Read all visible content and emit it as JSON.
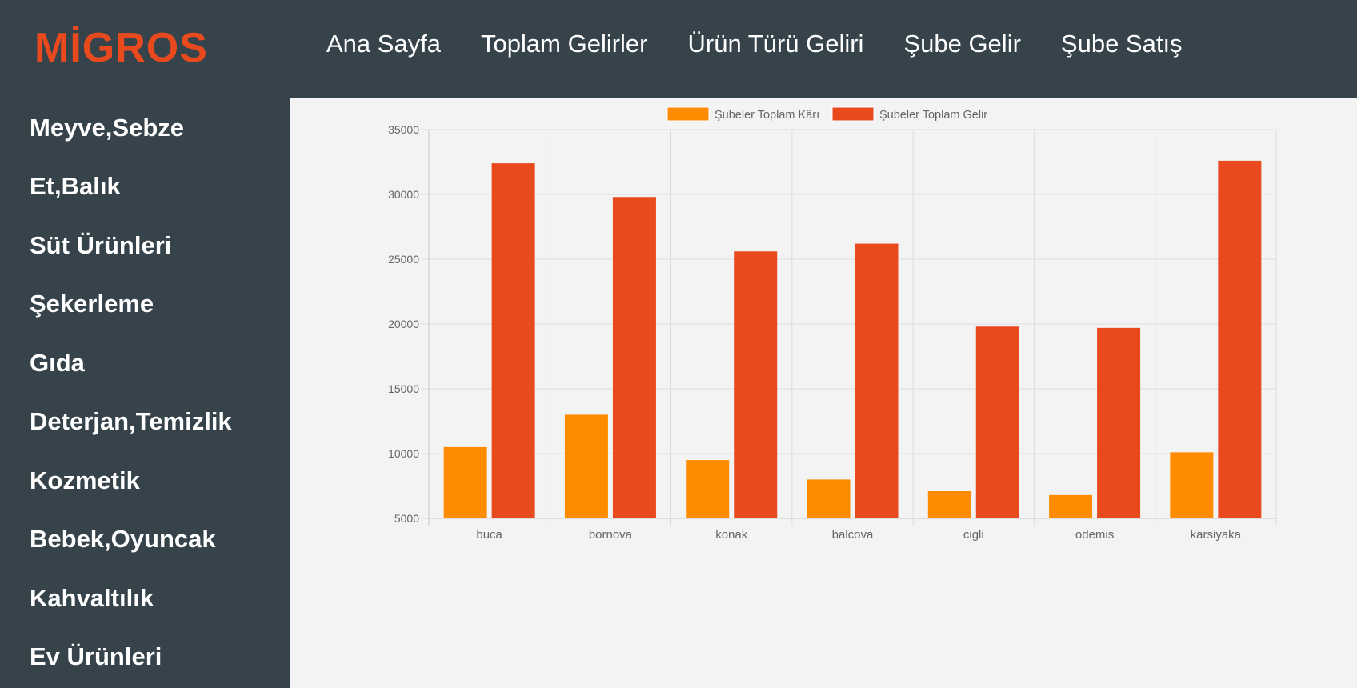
{
  "brand": {
    "logo": "MİGROS",
    "accent_color": "#e84a1e"
  },
  "nav": {
    "items": [
      {
        "id": "ana-sayfa",
        "label": "Ana Sayfa"
      },
      {
        "id": "toplam-gelirler",
        "label": "Toplam Gelirler"
      },
      {
        "id": "urun-turu-geliri",
        "label": "Ürün Türü Geliri"
      },
      {
        "id": "sube-gelir",
        "label": "Şube Gelir"
      },
      {
        "id": "sube-satis",
        "label": "Şube Satış"
      }
    ]
  },
  "sidebar": {
    "items": [
      {
        "id": "meyve-sebze",
        "label": "Meyve,Sebze"
      },
      {
        "id": "et-balik",
        "label": "Et,Balık"
      },
      {
        "id": "sut-urunleri",
        "label": "Süt Ürünleri"
      },
      {
        "id": "sekerleme",
        "label": "Şekerleme"
      },
      {
        "id": "gida",
        "label": "Gıda"
      },
      {
        "id": "deterjan-temizlik",
        "label": "Deterjan,Temizlik"
      },
      {
        "id": "kozmetik",
        "label": "Kozmetik"
      },
      {
        "id": "bebek-oyuncak",
        "label": "Bebek,Oyuncak"
      },
      {
        "id": "kahvaltilik",
        "label": "Kahvaltılık"
      },
      {
        "id": "ev-urunleri",
        "label": "Ev Ürünleri"
      }
    ]
  },
  "chart_data": {
    "type": "bar",
    "categories": [
      "buca",
      "bornova",
      "konak",
      "balcova",
      "cigli",
      "odemis",
      "karsiyaka"
    ],
    "series": [
      {
        "name": "Şubeler Toplam Kârı",
        "color": "#ff8c00",
        "values": [
          10500,
          13000,
          9500,
          8000,
          7100,
          6800,
          10100
        ]
      },
      {
        "name": "Şubeler Toplam Gelir",
        "color": "#e84a1e",
        "values": [
          32400,
          29800,
          25600,
          26200,
          19800,
          19700,
          32600
        ]
      }
    ],
    "yticks": [
      "35000",
      "30000",
      "25000",
      "20000",
      "15000",
      "10000",
      "5000"
    ],
    "ylim": [
      5000,
      35000
    ],
    "grid": true,
    "legend_position": "top"
  }
}
